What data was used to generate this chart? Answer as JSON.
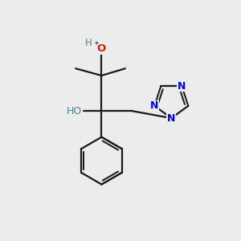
{
  "bg_color": "#ececec",
  "bond_color": "#1a1a1a",
  "N_color": "#0000dd",
  "O_color": "#cc2200",
  "OH_color": "#4a8a8a",
  "figsize": [
    3.0,
    3.0
  ],
  "dpi": 100,
  "xlim": [
    0,
    10
  ],
  "ylim": [
    0,
    10
  ]
}
